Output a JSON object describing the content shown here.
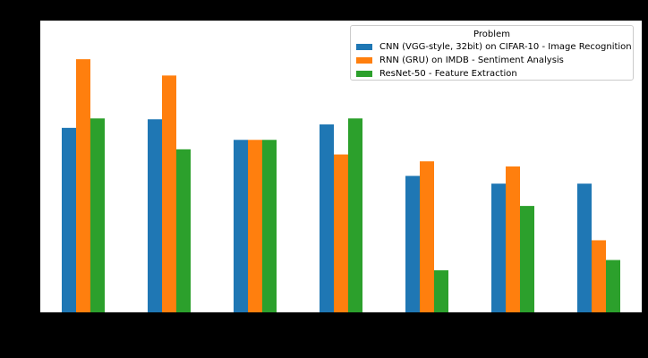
{
  "chart_data": {
    "type": "bar",
    "title": "",
    "xlabel": "",
    "ylabel": "",
    "ylim": [
      0,
      340
    ],
    "grid": false,
    "legend_position": "top-right",
    "legend_title": "Problem",
    "categories": [
      "",
      "",
      "",
      "",
      "",
      "",
      ""
    ],
    "series": [
      {
        "name": "CNN (VGG-style, 32bit) on CIFAR-10 - Image Recognition",
        "color": "#1f77b4",
        "values": [
          215,
          225,
          201,
          219,
          159,
          150,
          150
        ]
      },
      {
        "name": "RNN (GRU) on IMDB - Sentiment Analysis",
        "color": "#ff7f0e",
        "values": [
          295,
          276,
          201,
          184,
          176,
          170,
          84
        ]
      },
      {
        "name": "ResNet-50 - Feature Extraction",
        "color": "#2ca02c",
        "values": [
          226,
          190,
          201,
          226,
          49,
          124,
          61
        ]
      }
    ]
  }
}
